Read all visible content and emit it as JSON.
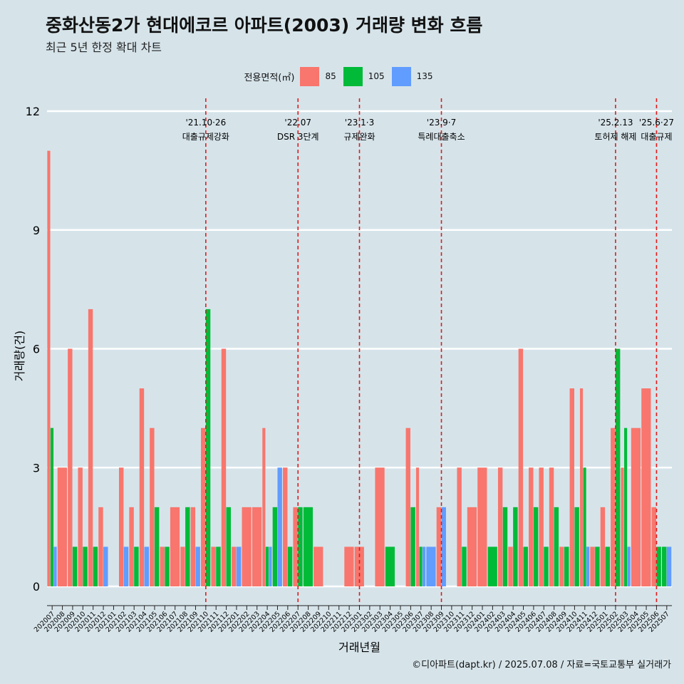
{
  "header": {
    "title": "중화산동2가 현대에코르 아파트(2003) 거래량 변화 흐름",
    "subtitle": "최근 5년 한정 확대 차트"
  },
  "legend": {
    "title": "전용면적(㎡)",
    "items": [
      {
        "label": "85",
        "color": "#f8766d"
      },
      {
        "label": "105",
        "color": "#00ba38"
      },
      {
        "label": "135",
        "color": "#619cff"
      }
    ]
  },
  "caption": "©디아파트(dapt.kr) / 2025.07.08 / 자료=국토교통부 실거래가",
  "chart_data": {
    "type": "bar",
    "xlabel": "거래년월",
    "ylabel": "거래량(건)",
    "ylim": [
      0,
      12
    ],
    "yticks": [
      0,
      3,
      6,
      9,
      12
    ],
    "grid": true,
    "legend_position": "top",
    "categories": [
      "202007",
      "202008",
      "202009",
      "202010",
      "202011",
      "202012",
      "202101",
      "202102",
      "202103",
      "202104",
      "202105",
      "202106",
      "202107",
      "202108",
      "202109",
      "202110",
      "202111",
      "202112",
      "202201",
      "202202",
      "202203",
      "202204",
      "202205",
      "202206",
      "202207",
      "202208",
      "202209",
      "202210",
      "202211",
      "202212",
      "202301",
      "202302",
      "202303",
      "202304",
      "202305",
      "202306",
      "202307",
      "202308",
      "202309",
      "202310",
      "202311",
      "202312",
      "202401",
      "202402",
      "202403",
      "202404",
      "202405",
      "202406",
      "202407",
      "202408",
      "202409",
      "202410",
      "202411",
      "202412",
      "202501",
      "202502",
      "202503",
      "202504",
      "202505",
      "202506",
      "202507"
    ],
    "x_tick_labels": [
      "202007",
      "202008",
      "202009",
      "202010",
      "202011",
      "202012",
      "202101",
      "202102",
      "202103",
      "202104",
      "202105",
      "202106",
      "202107",
      "202108",
      "202109",
      "202110",
      "202111",
      "202112",
      "202201",
      "202202",
      "202203",
      "202204",
      "202205",
      "202206",
      "202207",
      "202208",
      "202209",
      "202210",
      "202211",
      "202212",
      "202301",
      "202302",
      "202303",
      "202304",
      "202305",
      "202306",
      "202307",
      "202308",
      "202309",
      "202310",
      "202311",
      "202312",
      "202401",
      "202402",
      "202403",
      "202404",
      "202405",
      "202406",
      "202407",
      "202408",
      "202409",
      "202410",
      "202411",
      "202412",
      "202501",
      "202502",
      "202503",
      "202504",
      "202505",
      "202506",
      "202507"
    ],
    "series": [
      {
        "name": "85",
        "color": "#f8766d",
        "values": [
          11,
          3,
          6,
          3,
          7,
          2,
          null,
          3,
          2,
          5,
          4,
          1,
          2,
          1,
          2,
          4,
          1,
          6,
          1,
          2,
          2,
          4,
          null,
          3,
          2,
          null,
          1,
          null,
          null,
          1,
          1,
          null,
          3,
          null,
          null,
          4,
          3,
          null,
          2,
          null,
          3,
          2,
          3,
          null,
          3,
          1,
          6,
          3,
          3,
          3,
          1,
          5,
          5,
          1,
          2,
          4,
          3,
          4,
          5,
          2,
          null
        ]
      },
      {
        "name": "105",
        "color": "#00ba38",
        "values": [
          4,
          null,
          1,
          1,
          1,
          null,
          null,
          null,
          1,
          null,
          2,
          1,
          null,
          2,
          null,
          7,
          1,
          2,
          null,
          null,
          null,
          1,
          2,
          1,
          2,
          2,
          null,
          null,
          null,
          null,
          null,
          null,
          null,
          1,
          null,
          2,
          1,
          null,
          null,
          null,
          1,
          null,
          null,
          1,
          2,
          2,
          1,
          2,
          1,
          2,
          1,
          2,
          3,
          1,
          1,
          6,
          4,
          null,
          null,
          1,
          1
        ]
      },
      {
        "name": "135",
        "color": "#619cff",
        "values": [
          1,
          null,
          null,
          null,
          null,
          1,
          null,
          1,
          null,
          1,
          null,
          null,
          null,
          null,
          1,
          null,
          null,
          null,
          1,
          null,
          null,
          1,
          3,
          null,
          null,
          null,
          null,
          null,
          null,
          null,
          null,
          null,
          null,
          null,
          null,
          null,
          1,
          1,
          2,
          null,
          null,
          null,
          null,
          null,
          null,
          null,
          null,
          null,
          null,
          null,
          null,
          null,
          1,
          null,
          null,
          null,
          1,
          null,
          null,
          null,
          1
        ]
      }
    ],
    "annotations": [
      {
        "position": 15.0,
        "line1": "'21.10·26",
        "line2": "대출규제강화"
      },
      {
        "position": 24.0,
        "line1": "'22.07",
        "line2": "DSR 3단계"
      },
      {
        "position": 30.0,
        "line1": "'23.1·3",
        "line2": "규제완화"
      },
      {
        "position": 38.0,
        "line1": "'23.9·7",
        "line2": "특례대출축소"
      },
      {
        "position": 55.0,
        "line1": "'25.2.13",
        "line2": "토허제 해제"
      },
      {
        "position": 59.0,
        "line1": "'25.6·27",
        "line2": "대출규제"
      }
    ]
  }
}
